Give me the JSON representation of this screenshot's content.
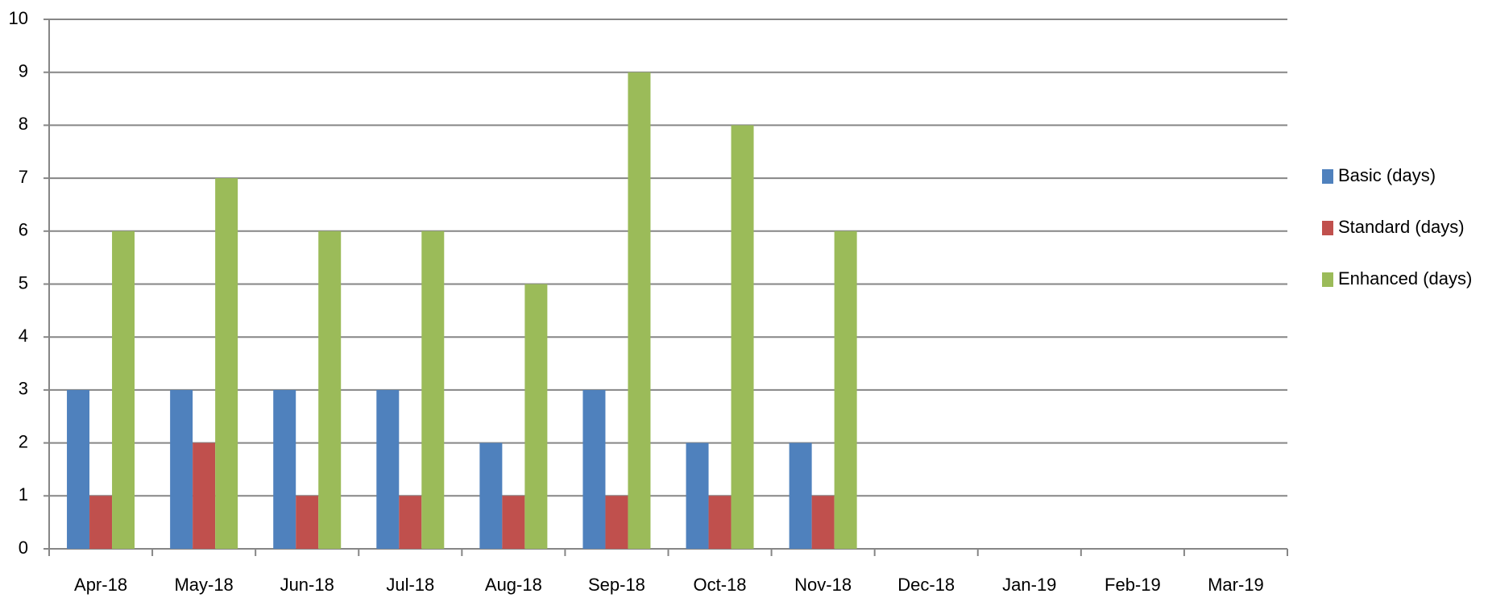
{
  "chart_data": {
    "type": "bar",
    "categories": [
      "Apr-18",
      "May-18",
      "Jun-18",
      "Jul-18",
      "Aug-18",
      "Sep-18",
      "Oct-18",
      "Nov-18",
      "Dec-18",
      "Jan-19",
      "Feb-19",
      "Mar-19"
    ],
    "series": [
      {
        "name": "Basic (days)",
        "color": "#4f81bd",
        "values": [
          3,
          3,
          3,
          3,
          2,
          3,
          2,
          2,
          null,
          null,
          null,
          null
        ]
      },
      {
        "name": "Standard (days)",
        "color": "#c0504d",
        "values": [
          1,
          2,
          1,
          1,
          1,
          1,
          1,
          1,
          null,
          null,
          null,
          null
        ]
      },
      {
        "name": "Enhanced (days)",
        "color": "#9bbb59",
        "values": [
          6,
          7,
          6,
          6,
          5,
          9,
          8,
          6,
          null,
          null,
          null,
          null
        ]
      }
    ],
    "ylim": [
      0,
      10
    ],
    "yticks": [
      0,
      1,
      2,
      3,
      4,
      5,
      6,
      7,
      8,
      9,
      10
    ],
    "grid": true,
    "legend": "right"
  }
}
